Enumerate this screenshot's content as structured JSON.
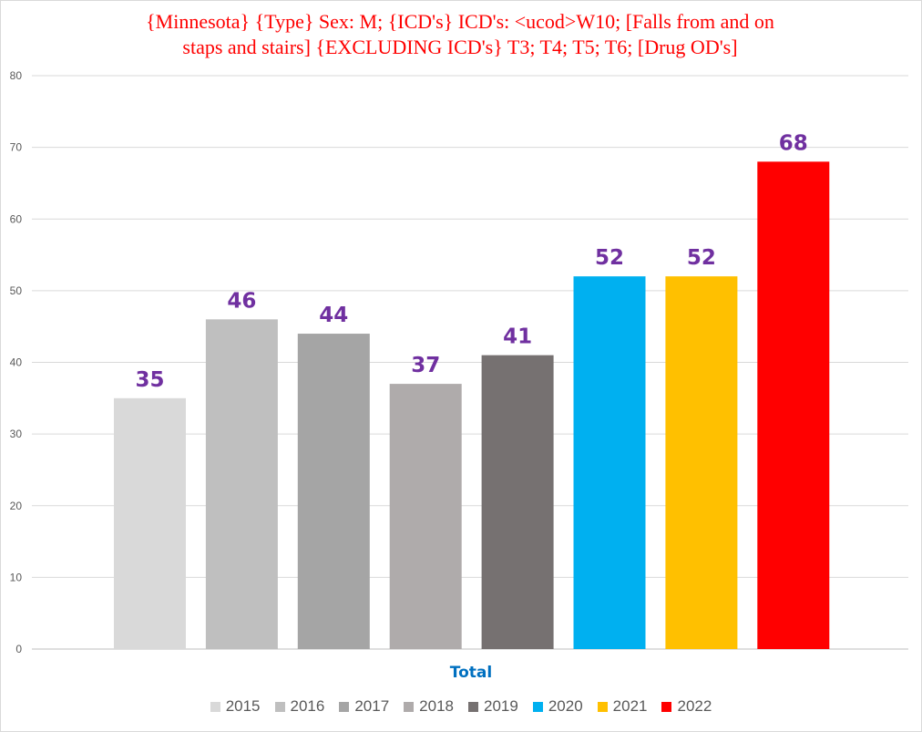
{
  "chart_data": {
    "type": "bar",
    "title": "{Minnesota} {Type} Sex: M; {ICD's} ICD's: <ucod>W10; [Falls from and on staps and stairs] {EXCLUDING ICD's} T3; T4; T5; T6; [Drug OD's]",
    "title_line1": "{Minnesota} {Type} Sex: M; {ICD's} ICD's: <ucod>W10; [Falls from and on",
    "title_line2": "staps and stairs] {EXCLUDING ICD's} T3; T4; T5; T6; [Drug OD's]",
    "categories": [
      "Total"
    ],
    "xlabel": "",
    "ylabel": "",
    "ylim": [
      0,
      80
    ],
    "yticks": [
      0,
      10,
      20,
      30,
      40,
      50,
      60,
      70,
      80
    ],
    "grid": true,
    "legend_position": "bottom",
    "series": [
      {
        "name": "2015",
        "values": [
          35
        ],
        "color": "#d9d9d9"
      },
      {
        "name": "2016",
        "values": [
          46
        ],
        "color": "#bfbfbf"
      },
      {
        "name": "2017",
        "values": [
          44
        ],
        "color": "#a5a5a5"
      },
      {
        "name": "2018",
        "values": [
          37
        ],
        "color": "#afabab"
      },
      {
        "name": "2019",
        "values": [
          41
        ],
        "color": "#767171"
      },
      {
        "name": "2020",
        "values": [
          52
        ],
        "color": "#00b0f0"
      },
      {
        "name": "2021",
        "values": [
          52
        ],
        "color": "#ffc000"
      },
      {
        "name": "2022",
        "values": [
          68
        ],
        "color": "#ff0000"
      }
    ],
    "data_label_color": "#7030a0",
    "title_color": "#ff0000",
    "category_label_color": "#0070c0"
  }
}
